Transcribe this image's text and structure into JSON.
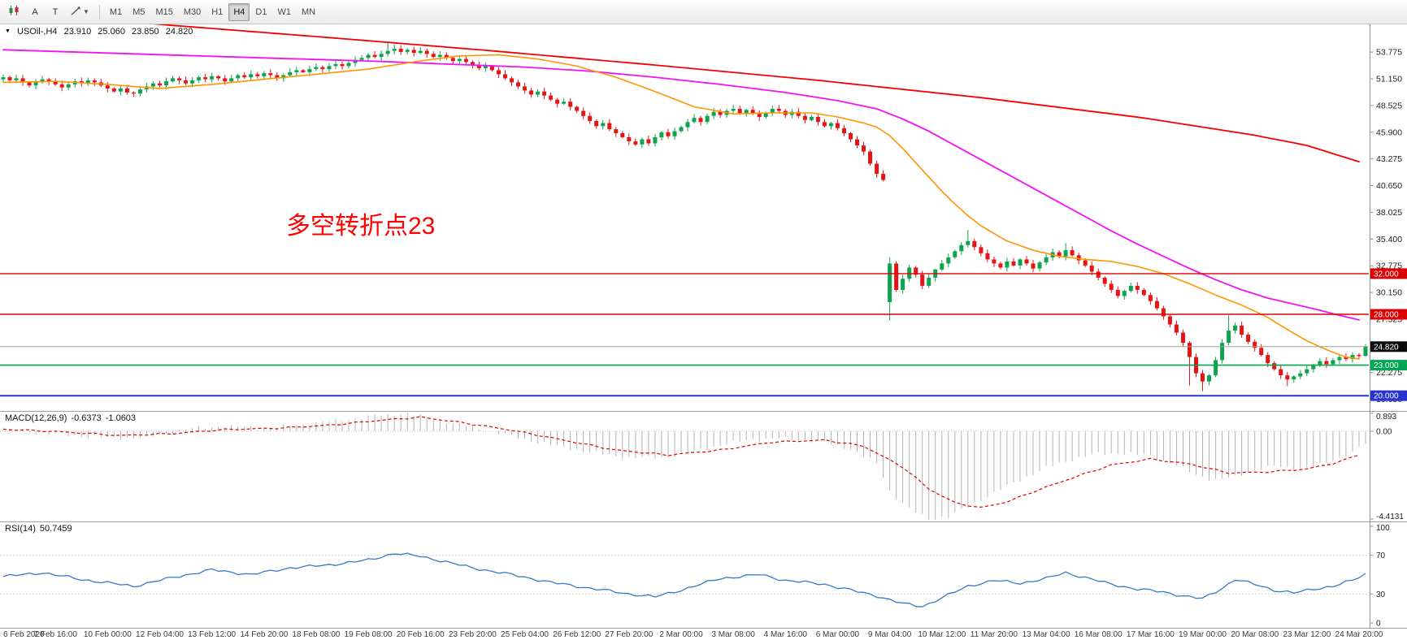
{
  "toolbar": {
    "cursor_label": "A",
    "text_label": "T",
    "timeframes": [
      "M1",
      "M5",
      "M15",
      "M30",
      "H1",
      "H4",
      "D1",
      "W1",
      "MN"
    ],
    "active_timeframe": "H4"
  },
  "chart": {
    "symbol": "USOil-,H4",
    "ohlc": {
      "open": "23.910",
      "high": "25.060",
      "low": "23.850",
      "close": "24.820"
    },
    "annotation": {
      "text": "多空转折点23",
      "color": "#ff0000"
    }
  },
  "indicators": {
    "macd": {
      "label": "MACD(12,26,9)",
      "value1": "-0.6373",
      "value2": "-1.0603"
    },
    "rsi": {
      "label": "RSI(14)",
      "value": "50.7459"
    }
  },
  "colors": {
    "candle_up": "#0fa34e",
    "candle_down": "#e51515",
    "ma_orange": "#ff9500",
    "ma_magenta": "#f213f2",
    "ma_red": "#f40000",
    "macd_hist": "#b3b3b3",
    "macd_signal": "#e00000",
    "rsi_line": "#3779c9",
    "bid_line": "#a0a0a0",
    "bid_badge": "#0c0c0c",
    "axis_text": "#1f1f1f",
    "time_text": "#3a3a3a"
  },
  "chart_data": {
    "type": "candlestick",
    "symbol": "USOil-",
    "timeframe": "H4",
    "bars": 210,
    "ylim": [
      18.5,
      56.5
    ],
    "price_axis_ticks": [
      53.775,
      51.15,
      48.525,
      45.9,
      43.275,
      40.65,
      38.025,
      35.4,
      32.775,
      30.15,
      27.525,
      24.9,
      22.275,
      19.65
    ],
    "first_open": 51.1,
    "closes": [
      51.3,
      51.0,
      51.2,
      50.8,
      50.5,
      50.8,
      51.1,
      50.9,
      50.6,
      50.3,
      50.6,
      50.9,
      50.7,
      51.0,
      50.8,
      50.5,
      50.2,
      49.9,
      50.2,
      49.8,
      49.7,
      50.1,
      50.4,
      50.7,
      50.5,
      50.9,
      51.2,
      51.0,
      50.7,
      51.0,
      51.3,
      51.1,
      51.4,
      51.2,
      50.9,
      51.2,
      51.5,
      51.3,
      51.6,
      51.4,
      51.7,
      51.5,
      51.2,
      51.5,
      51.8,
      52.0,
      51.8,
      52.1,
      52.3,
      52.1,
      52.4,
      52.6,
      52.4,
      52.7,
      53.0,
      53.2,
      53.5,
      53.3,
      53.6,
      53.9,
      54.1,
      53.8,
      54.0,
      53.7,
      53.9,
      53.6,
      53.3,
      53.5,
      53.2,
      52.9,
      53.1,
      52.8,
      52.5,
      52.2,
      52.4,
      52.0,
      51.6,
      51.2,
      50.8,
      50.4,
      50.0,
      49.6,
      49.9,
      49.5,
      49.1,
      48.7,
      48.9,
      48.4,
      48.0,
      47.5,
      47.0,
      46.5,
      46.8,
      46.2,
      45.8,
      45.4,
      45.0,
      44.7,
      45.2,
      44.8,
      45.4,
      45.9,
      45.5,
      46.0,
      46.4,
      46.9,
      47.3,
      46.9,
      47.5,
      47.9,
      47.6,
      48.0,
      48.2,
      47.8,
      48.1,
      47.7,
      47.4,
      47.8,
      48.2,
      48.0,
      47.6,
      47.9,
      47.5,
      47.1,
      47.4,
      46.9,
      46.5,
      46.8,
      46.3,
      45.8,
      45.2,
      44.6,
      44.0,
      42.8,
      41.8,
      41.2,
      33.0,
      30.4,
      31.5,
      32.6,
      31.9,
      30.8,
      31.6,
      32.4,
      33.0,
      33.6,
      34.2,
      34.8,
      35.2,
      34.6,
      34.0,
      33.4,
      33.0,
      32.6,
      33.2,
      32.8,
      33.4,
      33.0,
      32.5,
      33.1,
      33.6,
      34.1,
      33.7,
      34.3,
      33.8,
      33.3,
      32.8,
      32.2,
      31.6,
      31.0,
      30.4,
      29.8,
      30.3,
      30.8,
      30.4,
      29.9,
      29.3,
      28.6,
      27.8,
      27.0,
      26.2,
      25.2,
      23.8,
      22.2,
      21.4,
      22.0,
      23.5,
      25.2,
      26.4,
      26.9,
      26.0,
      25.3,
      24.7,
      24.0,
      23.2,
      22.6,
      22.0,
      21.6,
      21.9,
      22.2,
      22.6,
      23.0,
      23.4,
      23.1,
      23.5,
      23.8,
      23.6,
      24.0,
      23.9,
      24.82
    ],
    "candle_overrides": {
      "59": {
        "h": 54.65
      },
      "60": {
        "h": 54.55
      },
      "136": {
        "o": 29.2,
        "h": 33.6,
        "l": 27.4
      },
      "148": {
        "h": 36.3
      },
      "163": {
        "h": 35.0
      },
      "182": {
        "l": 21.0
      },
      "184": {
        "l": 20.45
      },
      "188": {
        "h": 27.9
      },
      "197": {
        "l": 20.95
      },
      "209": {
        "o": 23.91,
        "h": 25.06,
        "l": 23.85
      }
    },
    "h_lines": [
      {
        "price": 32.0,
        "label": "32.000",
        "color": "#dd0000",
        "width": 1.4
      },
      {
        "price": 28.0,
        "label": "28.000",
        "color": "#dd0000",
        "width": 1.4
      },
      {
        "price": 23.0,
        "label": "23.000",
        "color": "#00a651",
        "width": 1.6
      },
      {
        "price": 20.0,
        "label": "20.000",
        "color": "#2733cf",
        "width": 2
      }
    ],
    "bid": {
      "price": 24.82,
      "label": "24.820"
    },
    "ma_orange": [
      [
        0,
        50.8
      ],
      [
        8,
        50.9
      ],
      [
        16,
        50.6
      ],
      [
        24,
        50.2
      ],
      [
        32,
        50.6
      ],
      [
        40,
        51.1
      ],
      [
        48,
        51.6
      ],
      [
        56,
        52.1
      ],
      [
        64,
        52.9
      ],
      [
        70,
        53.4
      ],
      [
        76,
        53.5
      ],
      [
        82,
        53.1
      ],
      [
        88,
        52.4
      ],
      [
        94,
        51.3
      ],
      [
        100,
        49.9
      ],
      [
        106,
        48.4
      ],
      [
        112,
        47.7
      ],
      [
        118,
        47.8
      ],
      [
        124,
        47.8
      ],
      [
        128,
        47.4
      ],
      [
        132,
        46.8
      ],
      [
        135,
        46.2
      ],
      [
        138,
        44.3
      ],
      [
        141,
        42.2
      ],
      [
        144,
        40.1
      ],
      [
        147,
        38.2
      ],
      [
        150,
        36.7
      ],
      [
        154,
        35.2
      ],
      [
        158,
        34.3
      ],
      [
        162,
        33.7
      ],
      [
        166,
        33.4
      ],
      [
        170,
        33.2
      ],
      [
        174,
        32.7
      ],
      [
        178,
        32.0
      ],
      [
        182,
        31.0
      ],
      [
        186,
        29.9
      ],
      [
        190,
        28.9
      ],
      [
        194,
        27.7
      ],
      [
        197,
        26.5
      ],
      [
        200,
        25.4
      ],
      [
        203,
        24.5
      ],
      [
        206,
        23.8
      ],
      [
        209,
        23.5
      ]
    ],
    "ma_magenta": [
      [
        0,
        54.0
      ],
      [
        20,
        53.6
      ],
      [
        40,
        53.2
      ],
      [
        56,
        52.9
      ],
      [
        68,
        52.6
      ],
      [
        80,
        52.3
      ],
      [
        90,
        51.9
      ],
      [
        100,
        51.3
      ],
      [
        110,
        50.6
      ],
      [
        120,
        49.8
      ],
      [
        128,
        49.0
      ],
      [
        134,
        48.2
      ],
      [
        138,
        47.2
      ],
      [
        142,
        46.0
      ],
      [
        146,
        44.6
      ],
      [
        150,
        43.2
      ],
      [
        154,
        41.8
      ],
      [
        158,
        40.4
      ],
      [
        162,
        39.0
      ],
      [
        166,
        37.6
      ],
      [
        170,
        36.2
      ],
      [
        174,
        34.9
      ],
      [
        178,
        33.7
      ],
      [
        182,
        32.5
      ],
      [
        186,
        31.4
      ],
      [
        190,
        30.4
      ],
      [
        194,
        29.6
      ],
      [
        198,
        29.0
      ],
      [
        202,
        28.4
      ],
      [
        205,
        27.9
      ],
      [
        209,
        27.3
      ]
    ],
    "ma_red": [
      [
        0,
        57.8
      ],
      [
        15,
        57.0
      ],
      [
        26,
        56.4
      ],
      [
        50,
        55.2
      ],
      [
        75,
        53.9
      ],
      [
        100,
        52.5
      ],
      [
        125,
        51.0
      ],
      [
        150,
        49.3
      ],
      [
        175,
        47.3
      ],
      [
        192,
        45.6
      ],
      [
        200,
        44.6
      ],
      [
        209,
        42.8
      ]
    ],
    "macd": {
      "ylim": [
        -4.4131,
        0.893
      ],
      "axis": [
        {
          "v": 0.893,
          "label": "0.893"
        },
        {
          "v": 0,
          "label": "0.00"
        },
        {
          "v": -4.4131,
          "label": "-4.4131"
        }
      ],
      "hist_keypoints": [
        [
          0,
          0.05
        ],
        [
          8,
          -0.15
        ],
        [
          16,
          -0.35
        ],
        [
          22,
          -0.3
        ],
        [
          28,
          0.1
        ],
        [
          34,
          0.25
        ],
        [
          40,
          0.15
        ],
        [
          46,
          0.35
        ],
        [
          52,
          0.55
        ],
        [
          58,
          0.8
        ],
        [
          62,
          0.893
        ],
        [
          66,
          0.6
        ],
        [
          72,
          0.2
        ],
        [
          78,
          -0.25
        ],
        [
          84,
          -0.7
        ],
        [
          90,
          -1.05
        ],
        [
          96,
          -1.35
        ],
        [
          102,
          -1.3
        ],
        [
          108,
          -0.85
        ],
        [
          114,
          -0.45
        ],
        [
          120,
          -0.35
        ],
        [
          126,
          -0.55
        ],
        [
          130,
          -0.9
        ],
        [
          134,
          -1.6
        ],
        [
          136,
          -3.0
        ],
        [
          139,
          -3.9
        ],
        [
          142,
          -4.41
        ],
        [
          145,
          -4.3
        ],
        [
          148,
          -3.8
        ],
        [
          152,
          -3.1
        ],
        [
          156,
          -2.45
        ],
        [
          160,
          -1.85
        ],
        [
          164,
          -1.4
        ],
        [
          168,
          -1.15
        ],
        [
          172,
          -1.1
        ],
        [
          176,
          -1.25
        ],
        [
          180,
          -1.7
        ],
        [
          183,
          -2.2
        ],
        [
          186,
          -2.45
        ],
        [
          189,
          -2.3
        ],
        [
          192,
          -1.95
        ],
        [
          195,
          -1.75
        ],
        [
          198,
          -1.9
        ],
        [
          201,
          -1.8
        ],
        [
          204,
          -1.45
        ],
        [
          207,
          -1.05
        ],
        [
          209,
          -0.6373
        ]
      ],
      "signal_keypoints": [
        [
          0,
          0.1
        ],
        [
          10,
          -0.05
        ],
        [
          18,
          -0.22
        ],
        [
          26,
          -0.12
        ],
        [
          34,
          0.08
        ],
        [
          42,
          0.15
        ],
        [
          50,
          0.3
        ],
        [
          58,
          0.55
        ],
        [
          64,
          0.7
        ],
        [
          70,
          0.45
        ],
        [
          78,
          0.05
        ],
        [
          86,
          -0.45
        ],
        [
          94,
          -0.95
        ],
        [
          102,
          -1.2
        ],
        [
          110,
          -0.95
        ],
        [
          118,
          -0.55
        ],
        [
          126,
          -0.45
        ],
        [
          132,
          -0.75
        ],
        [
          138,
          -1.8
        ],
        [
          142,
          -2.9
        ],
        [
          146,
          -3.6
        ],
        [
          150,
          -3.85
        ],
        [
          154,
          -3.55
        ],
        [
          158,
          -3.05
        ],
        [
          164,
          -2.35
        ],
        [
          170,
          -1.7
        ],
        [
          176,
          -1.4
        ],
        [
          182,
          -1.65
        ],
        [
          188,
          -2.1
        ],
        [
          194,
          -2.05
        ],
        [
          200,
          -1.9
        ],
        [
          205,
          -1.55
        ],
        [
          209,
          -1.0603
        ]
      ],
      "last": -0.6373,
      "signal_last": -1.0603
    },
    "rsi": {
      "ylim": [
        0,
        100
      ],
      "levels": [
        70,
        30
      ],
      "axis": [
        {
          "v": 100,
          "label": "100"
        },
        {
          "v": 70,
          "label": "70"
        },
        {
          "v": 30,
          "label": "30"
        },
        {
          "v": 0,
          "label": "0"
        }
      ],
      "keypoints": [
        [
          0,
          48
        ],
        [
          6,
          52
        ],
        [
          12,
          45
        ],
        [
          20,
          38
        ],
        [
          26,
          47
        ],
        [
          32,
          55
        ],
        [
          38,
          50
        ],
        [
          44,
          57
        ],
        [
          50,
          60
        ],
        [
          56,
          65
        ],
        [
          60,
          72
        ],
        [
          64,
          69
        ],
        [
          68,
          63
        ],
        [
          72,
          57
        ],
        [
          78,
          50
        ],
        [
          84,
          42
        ],
        [
          90,
          36
        ],
        [
          96,
          30
        ],
        [
          100,
          27
        ],
        [
          104,
          34
        ],
        [
          110,
          46
        ],
        [
          116,
          50
        ],
        [
          120,
          44
        ],
        [
          126,
          40
        ],
        [
          130,
          34
        ],
        [
          134,
          28
        ],
        [
          138,
          20
        ],
        [
          141,
          17
        ],
        [
          144,
          26
        ],
        [
          148,
          38
        ],
        [
          152,
          44
        ],
        [
          156,
          41
        ],
        [
          160,
          46
        ],
        [
          163,
          52
        ],
        [
          166,
          47
        ],
        [
          170,
          40
        ],
        [
          174,
          35
        ],
        [
          178,
          32
        ],
        [
          181,
          28
        ],
        [
          184,
          25
        ],
        [
          187,
          36
        ],
        [
          189,
          45
        ],
        [
          192,
          40
        ],
        [
          195,
          34
        ],
        [
          198,
          31
        ],
        [
          201,
          35
        ],
        [
          204,
          38
        ],
        [
          207,
          44
        ],
        [
          209,
          50.7
        ]
      ],
      "last": 50.7459
    },
    "time_labels": [
      {
        "i": 0,
        "t": "6 Feb 2020"
      },
      {
        "i": 8,
        "t": "7 Feb 16:00"
      },
      {
        "i": 16,
        "t": "10 Feb 00:00"
      },
      {
        "i": 24,
        "t": "12 Feb 04:00"
      },
      {
        "i": 32,
        "t": "13 Feb 12:00"
      },
      {
        "i": 40,
        "t": "14 Feb 20:00"
      },
      {
        "i": 48,
        "t": "18 Feb 08:00"
      },
      {
        "i": 56,
        "t": "19 Feb 08:00"
      },
      {
        "i": 64,
        "t": "20 Feb 16:00"
      },
      {
        "i": 72,
        "t": "23 Feb 20:00"
      },
      {
        "i": 80,
        "t": "25 Feb 04:00"
      },
      {
        "i": 88,
        "t": "26 Feb 12:00"
      },
      {
        "i": 96,
        "t": "27 Feb 20:00"
      },
      {
        "i": 104,
        "t": "2 Mar 00:00"
      },
      {
        "i": 112,
        "t": "3 Mar 08:00"
      },
      {
        "i": 120,
        "t": "4 Mar 16:00"
      },
      {
        "i": 128,
        "t": "6 Mar 00:00"
      },
      {
        "i": 136,
        "t": "9 Mar 04:00"
      },
      {
        "i": 144,
        "t": "10 Mar 12:00"
      },
      {
        "i": 152,
        "t": "11 Mar 20:00"
      },
      {
        "i": 160,
        "t": "13 Mar 04:00"
      },
      {
        "i": 168,
        "t": "16 Mar 08:00"
      },
      {
        "i": 176,
        "t": "17 Mar 16:00"
      },
      {
        "i": 184,
        "t": "19 Mar 00:00"
      },
      {
        "i": 192,
        "t": "20 Mar 08:00"
      },
      {
        "i": 200,
        "t": "23 Mar 12:00"
      },
      {
        "i": 208,
        "t": "24 Mar 20:00"
      }
    ]
  }
}
